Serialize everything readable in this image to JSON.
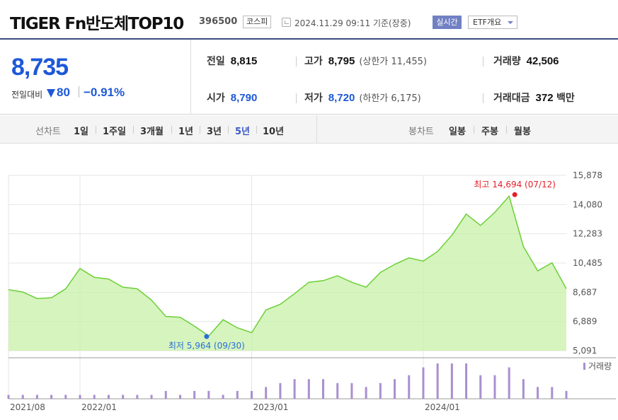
{
  "header": {
    "title": "TIGER Fn반도체TOP10",
    "code": "396500",
    "market": "코스피",
    "datetime": "2024.11.29 09:11 기준(장중)",
    "realtime_label": "실시간",
    "etf_label": "ETF개요"
  },
  "quote": {
    "price": "8,735",
    "change_label": "전일대비",
    "change": "80",
    "change_rate": "−0.91%",
    "prev_close_label": "전일",
    "prev_close": "8,815",
    "open_label": "시가",
    "open": "8,790",
    "high_label": "고가",
    "high": "8,795",
    "upper_limit": "(상한가 11,455)",
    "low_label": "저가",
    "low": "8,720",
    "lower_limit": "(하한가 6,175)",
    "volume_label": "거래량",
    "volume": "42,506",
    "value_label": "거래대금",
    "value": "372",
    "value_unit": "백만",
    "down_color": "#1d58d8"
  },
  "periods": {
    "line_label": "선차트",
    "line_items": [
      "1일",
      "1주일",
      "3개월",
      "1년",
      "3년",
      "5년",
      "10년"
    ],
    "active": "5년",
    "candle_label": "봉차트",
    "candle_items": [
      "일봉",
      "주봉",
      "월봉"
    ]
  },
  "chart_data": {
    "type": "area",
    "x": [
      "2021/08",
      "2021/09",
      "2021/10",
      "2021/11",
      "2021/12",
      "2022/01",
      "2022/02",
      "2022/03",
      "2022/04",
      "2022/05",
      "2022/06",
      "2022/07",
      "2022/08",
      "2022/09",
      "2022/10",
      "2022/11",
      "2022/12",
      "2023/01",
      "2023/02",
      "2023/03",
      "2023/04",
      "2023/05",
      "2023/06",
      "2023/07",
      "2023/08",
      "2023/09",
      "2023/10",
      "2023/11",
      "2023/12",
      "2024/01",
      "2024/02",
      "2024/03",
      "2024/04",
      "2024/05",
      "2024/06",
      "2024/07",
      "2024/08",
      "2024/09",
      "2024/10",
      "2024/11"
    ],
    "price": [
      8850,
      8700,
      8300,
      8350,
      8900,
      10150,
      9600,
      9500,
      9000,
      8900,
      8200,
      7200,
      7150,
      6600,
      6000,
      7000,
      6500,
      6200,
      7600,
      7950,
      8600,
      9300,
      9400,
      9700,
      9300,
      9000,
      9900,
      10400,
      10800,
      10600,
      11200,
      12200,
      13500,
      12800,
      13600,
      14600,
      11500,
      10000,
      10500,
      8900
    ],
    "volume": [
      1,
      1,
      1,
      1,
      1,
      1,
      1,
      1,
      1,
      1,
      1,
      2,
      1,
      2,
      2,
      1,
      2,
      2,
      3,
      4,
      5,
      5,
      5,
      4,
      4,
      3,
      4,
      5,
      6,
      8,
      9,
      9,
      9,
      6,
      6,
      8,
      5,
      3,
      3,
      2
    ],
    "ylim": [
      5091,
      15878
    ],
    "y_ticks": [
      "15,878",
      "14,080",
      "12,283",
      "10,485",
      "8,687",
      "6,889",
      "5,091"
    ],
    "x_ticks": [
      "2021/08",
      "2022/01",
      "2023/01",
      "2024/01"
    ],
    "max_label": "최고 14,694 (07/12)",
    "min_label": "최저 5,964 (09/30)",
    "volume_legend": "거래량",
    "line_color": "#6bd037",
    "fill_color": "#c8f0a8",
    "high_marker_color": "#e5202a",
    "low_marker_color": "#2b6fd8",
    "volume_color": "#a98fd0",
    "grid": true
  }
}
